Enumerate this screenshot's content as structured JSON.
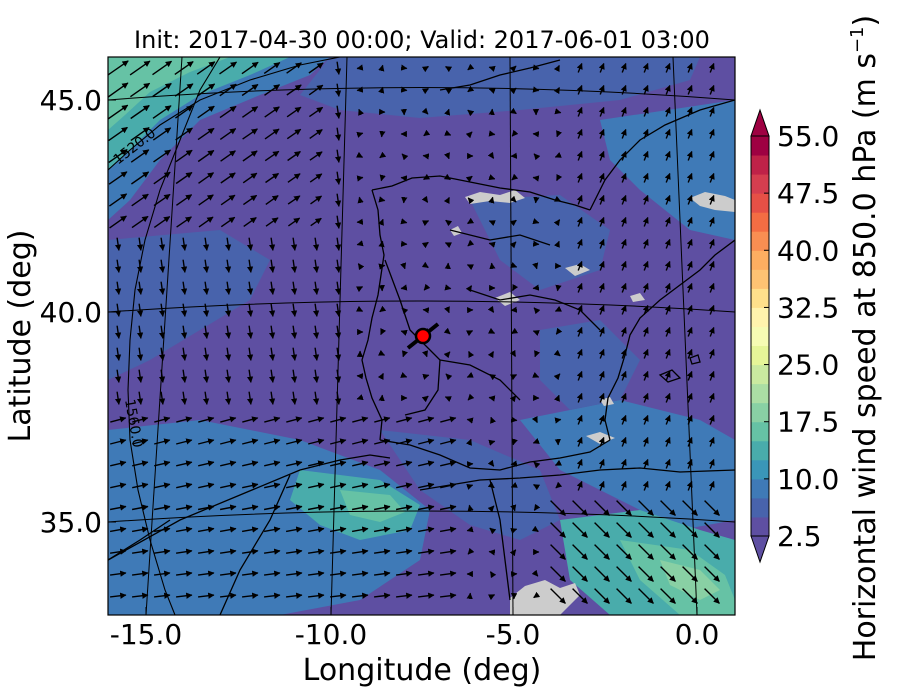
{
  "title": "Init: 2017-04-30 00:00; Valid: 2017-06-01 03:00",
  "xlabel": "Longitude (deg)",
  "ylabel": "Latitude (deg)",
  "x_ticks": [
    "-15.0",
    "-10.0",
    "-5.0",
    "0.0"
  ],
  "y_ticks": [
    "45.0",
    "40.0",
    "35.0"
  ],
  "colorbar": {
    "label": "Horizontal wind speed at 850.0 hPa (m s",
    "label_exp": "−1",
    "label_close": ")",
    "ticks": [
      "55.0",
      "47.5",
      "40.0",
      "32.5",
      "25.0",
      "17.5",
      "10.0",
      "2.5"
    ],
    "colors": [
      "#5e4fa2",
      "#4863ac",
      "#3f7ab7",
      "#3a96b8",
      "#49acab",
      "#66c2a5",
      "#89d0a4",
      "#abdda4",
      "#cae9a0",
      "#e6f598",
      "#f6fbb3",
      "#fff3ad",
      "#fee08b",
      "#fdc373",
      "#fdae61",
      "#f98e52",
      "#f46d43",
      "#e65046",
      "#d53e4f",
      "#bf2248",
      "#9e0142"
    ]
  },
  "contour_labels": [
    "1520.0",
    "1560.0"
  ],
  "marker": {
    "lon": -7.6,
    "lat": 39.3,
    "color": "#ff0000"
  },
  "chart_data": {
    "type": "heatmap",
    "title": "Init: 2017-04-30 00:00; Valid: 2017-06-01 03:00",
    "xlabel": "Longitude (deg)",
    "ylabel": "Latitude (deg)",
    "xlim": [
      -16,
      0.2
    ],
    "ylim": [
      32.8,
      46.2
    ],
    "variable": "Horizontal wind speed at 850.0 hPa",
    "units": "m s-1",
    "colorbar_range": [
      2.5,
      55.0
    ],
    "colorbar_step": 2.5,
    "colorbar_extend": "both",
    "geopotential_contours": [
      1520.0,
      1560.0
    ],
    "point_marker": {
      "lon": -7.6,
      "lat": 39.3
    }
  }
}
